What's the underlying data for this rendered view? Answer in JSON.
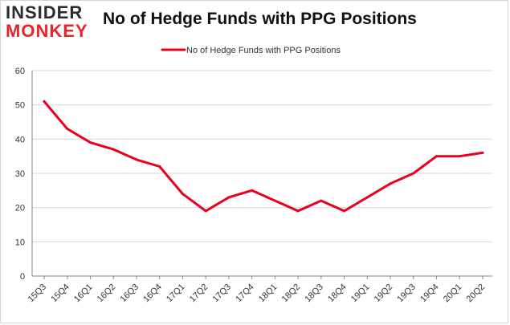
{
  "logo": {
    "line1": "INSIDER",
    "line2": "MONKEY"
  },
  "colors": {
    "series": "#e8001c",
    "grid": "#d9d9d9",
    "axis": "#888888",
    "text": "#333333"
  },
  "chart_data": {
    "type": "line",
    "title": "No of Hedge Funds with PPG Positions",
    "xlabel": "",
    "ylabel": "",
    "ylim": [
      0,
      60
    ],
    "yticks": [
      0,
      10,
      20,
      30,
      40,
      50,
      60
    ],
    "grid": true,
    "legend_position": "top-center",
    "categories": [
      "15Q3",
      "15Q4",
      "16Q1",
      "16Q2",
      "16Q3",
      "16Q4",
      "17Q1",
      "17Q2",
      "17Q3",
      "17Q4",
      "18Q1",
      "18Q2",
      "18Q3",
      "18Q4",
      "19Q1",
      "19Q2",
      "19Q3",
      "19Q4",
      "20Q1",
      "20Q2"
    ],
    "series": [
      {
        "name": "No of Hedge Funds with PPG Positions",
        "values": [
          51,
          43,
          39,
          37,
          34,
          32,
          24,
          19,
          23,
          25,
          22,
          19,
          22,
          19,
          23,
          27,
          30,
          35,
          35,
          36
        ]
      }
    ]
  }
}
